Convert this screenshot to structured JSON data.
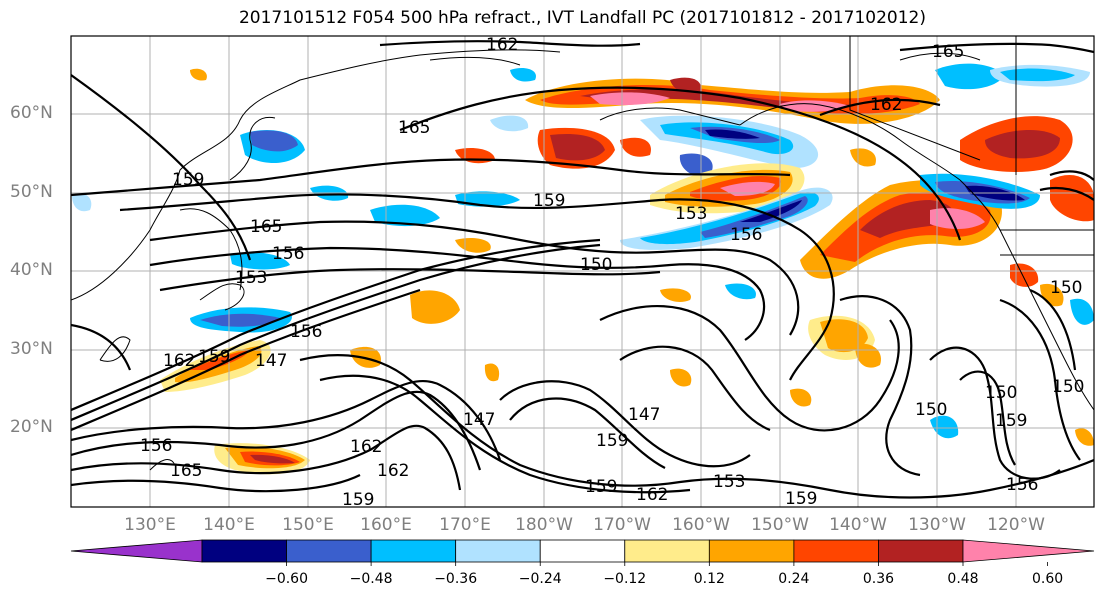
{
  "title": "2017101512 F054 500 hPa refract., IVT Landfall PC (2017101812 - 2017102012)",
  "lat_labels": [
    "60°N",
    "50°N",
    "40°N",
    "30°N",
    "20°N"
  ],
  "lon_labels": [
    "130°E",
    "140°E",
    "150°E",
    "160°E",
    "170°E",
    "180°W",
    "170°W",
    "160°W",
    "150°W",
    "140°W",
    "130°W",
    "120°W"
  ],
  "contour_labels": [
    "162",
    "165",
    "165",
    "162",
    "165",
    "159",
    "156",
    "153",
    "153",
    "150",
    "156",
    "147",
    "162",
    "159",
    "156",
    "165",
    "162",
    "162",
    "159",
    "159",
    "162",
    "153",
    "159",
    "147",
    "147",
    "159",
    "150",
    "159",
    "150",
    "156",
    "150",
    "150",
    "156",
    "159"
  ],
  "colorbar": {
    "ticks": [
      "−0.60",
      "−0.48",
      "−0.36",
      "−0.24",
      "−0.12",
      "0.12",
      "0.24",
      "0.36",
      "0.48",
      "0.60"
    ],
    "colors": [
      "#9932cc",
      "#000080",
      "#3a5fcd",
      "#00bfff",
      "#b0e2ff",
      "#ffffff",
      "#ffec8b",
      "#ffa500",
      "#ff4500",
      "#b22222",
      "#ff82ab"
    ]
  },
  "map_colors": {
    "neg_strong": "#000080",
    "neg_mid": "#3a5fcd",
    "neg_light": "#00bfff",
    "neg_faint": "#b0e2ff",
    "pos_faint": "#ffec8b",
    "pos_light": "#ffa500",
    "pos_mid": "#ff4500",
    "pos_strong": "#b22222",
    "pos_max": "#ff82ab",
    "gridline": "#b0b0b0",
    "tick_label": "#7f7f7f"
  }
}
